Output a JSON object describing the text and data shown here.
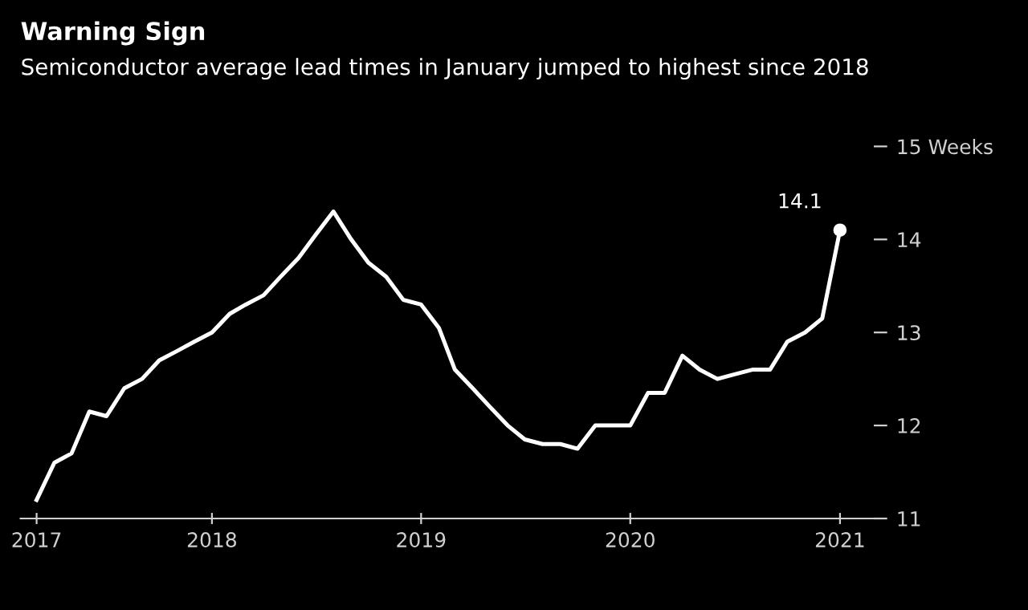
{
  "chart_data": {
    "type": "line",
    "title": "Warning Sign",
    "subtitle": "Semiconductor average lead times in January jumped to highest since 2018",
    "x": [
      "2017-03",
      "2017-04",
      "2017-05",
      "2017-06",
      "2017-07",
      "2017-08",
      "2017-09",
      "2017-10",
      "2017-11",
      "2017-12",
      "2018-01",
      "2018-02",
      "2018-03",
      "2018-04",
      "2018-05",
      "2018-06",
      "2018-07",
      "2018-08",
      "2018-09",
      "2018-10",
      "2018-11",
      "2018-12",
      "2019-01",
      "2019-02",
      "2019-03",
      "2019-04",
      "2019-05",
      "2019-06",
      "2019-07",
      "2019-08",
      "2019-09",
      "2019-10",
      "2019-11",
      "2019-12",
      "2020-01",
      "2020-02",
      "2020-03",
      "2020-04",
      "2020-05",
      "2020-06",
      "2020-07",
      "2020-08",
      "2020-09",
      "2020-10",
      "2020-11",
      "2020-12",
      "2021-01"
    ],
    "series": [
      {
        "color": "#ffffff",
        "values": [
          11.2,
          11.6,
          11.7,
          12.15,
          12.1,
          12.4,
          12.5,
          12.7,
          12.8,
          12.9,
          13.0,
          13.2,
          13.3,
          13.4,
          13.6,
          13.8,
          14.05,
          14.3,
          14.0,
          13.75,
          13.6,
          13.35,
          13.3,
          13.05,
          12.6,
          12.4,
          12.2,
          12.0,
          11.85,
          11.8,
          11.8,
          11.75,
          12.0,
          12.0,
          12.0,
          12.35,
          12.35,
          12.75,
          12.6,
          12.5,
          12.55,
          12.6,
          12.6,
          12.9,
          13.0,
          13.15,
          14.1
        ]
      }
    ],
    "xlim": [
      "2017-02",
      "2021-03"
    ],
    "xticks": [
      {
        "value": "2017-03",
        "label": "2017"
      },
      {
        "value": "2018-01",
        "label": "2018"
      },
      {
        "value": "2019-01",
        "label": "2019"
      },
      {
        "value": "2020-01",
        "label": "2020"
      },
      {
        "value": "2021-01",
        "label": "2021"
      }
    ],
    "ylim": [
      11,
      15
    ],
    "yticks": [
      11,
      12,
      13,
      14,
      {
        "value": 15,
        "label": "15 Weeks"
      }
    ],
    "annotations": [
      {
        "text": "14.1",
        "x": "2021-01",
        "y": 14.1
      }
    ],
    "grid": false,
    "marker": "none",
    "line_style": "solid"
  }
}
